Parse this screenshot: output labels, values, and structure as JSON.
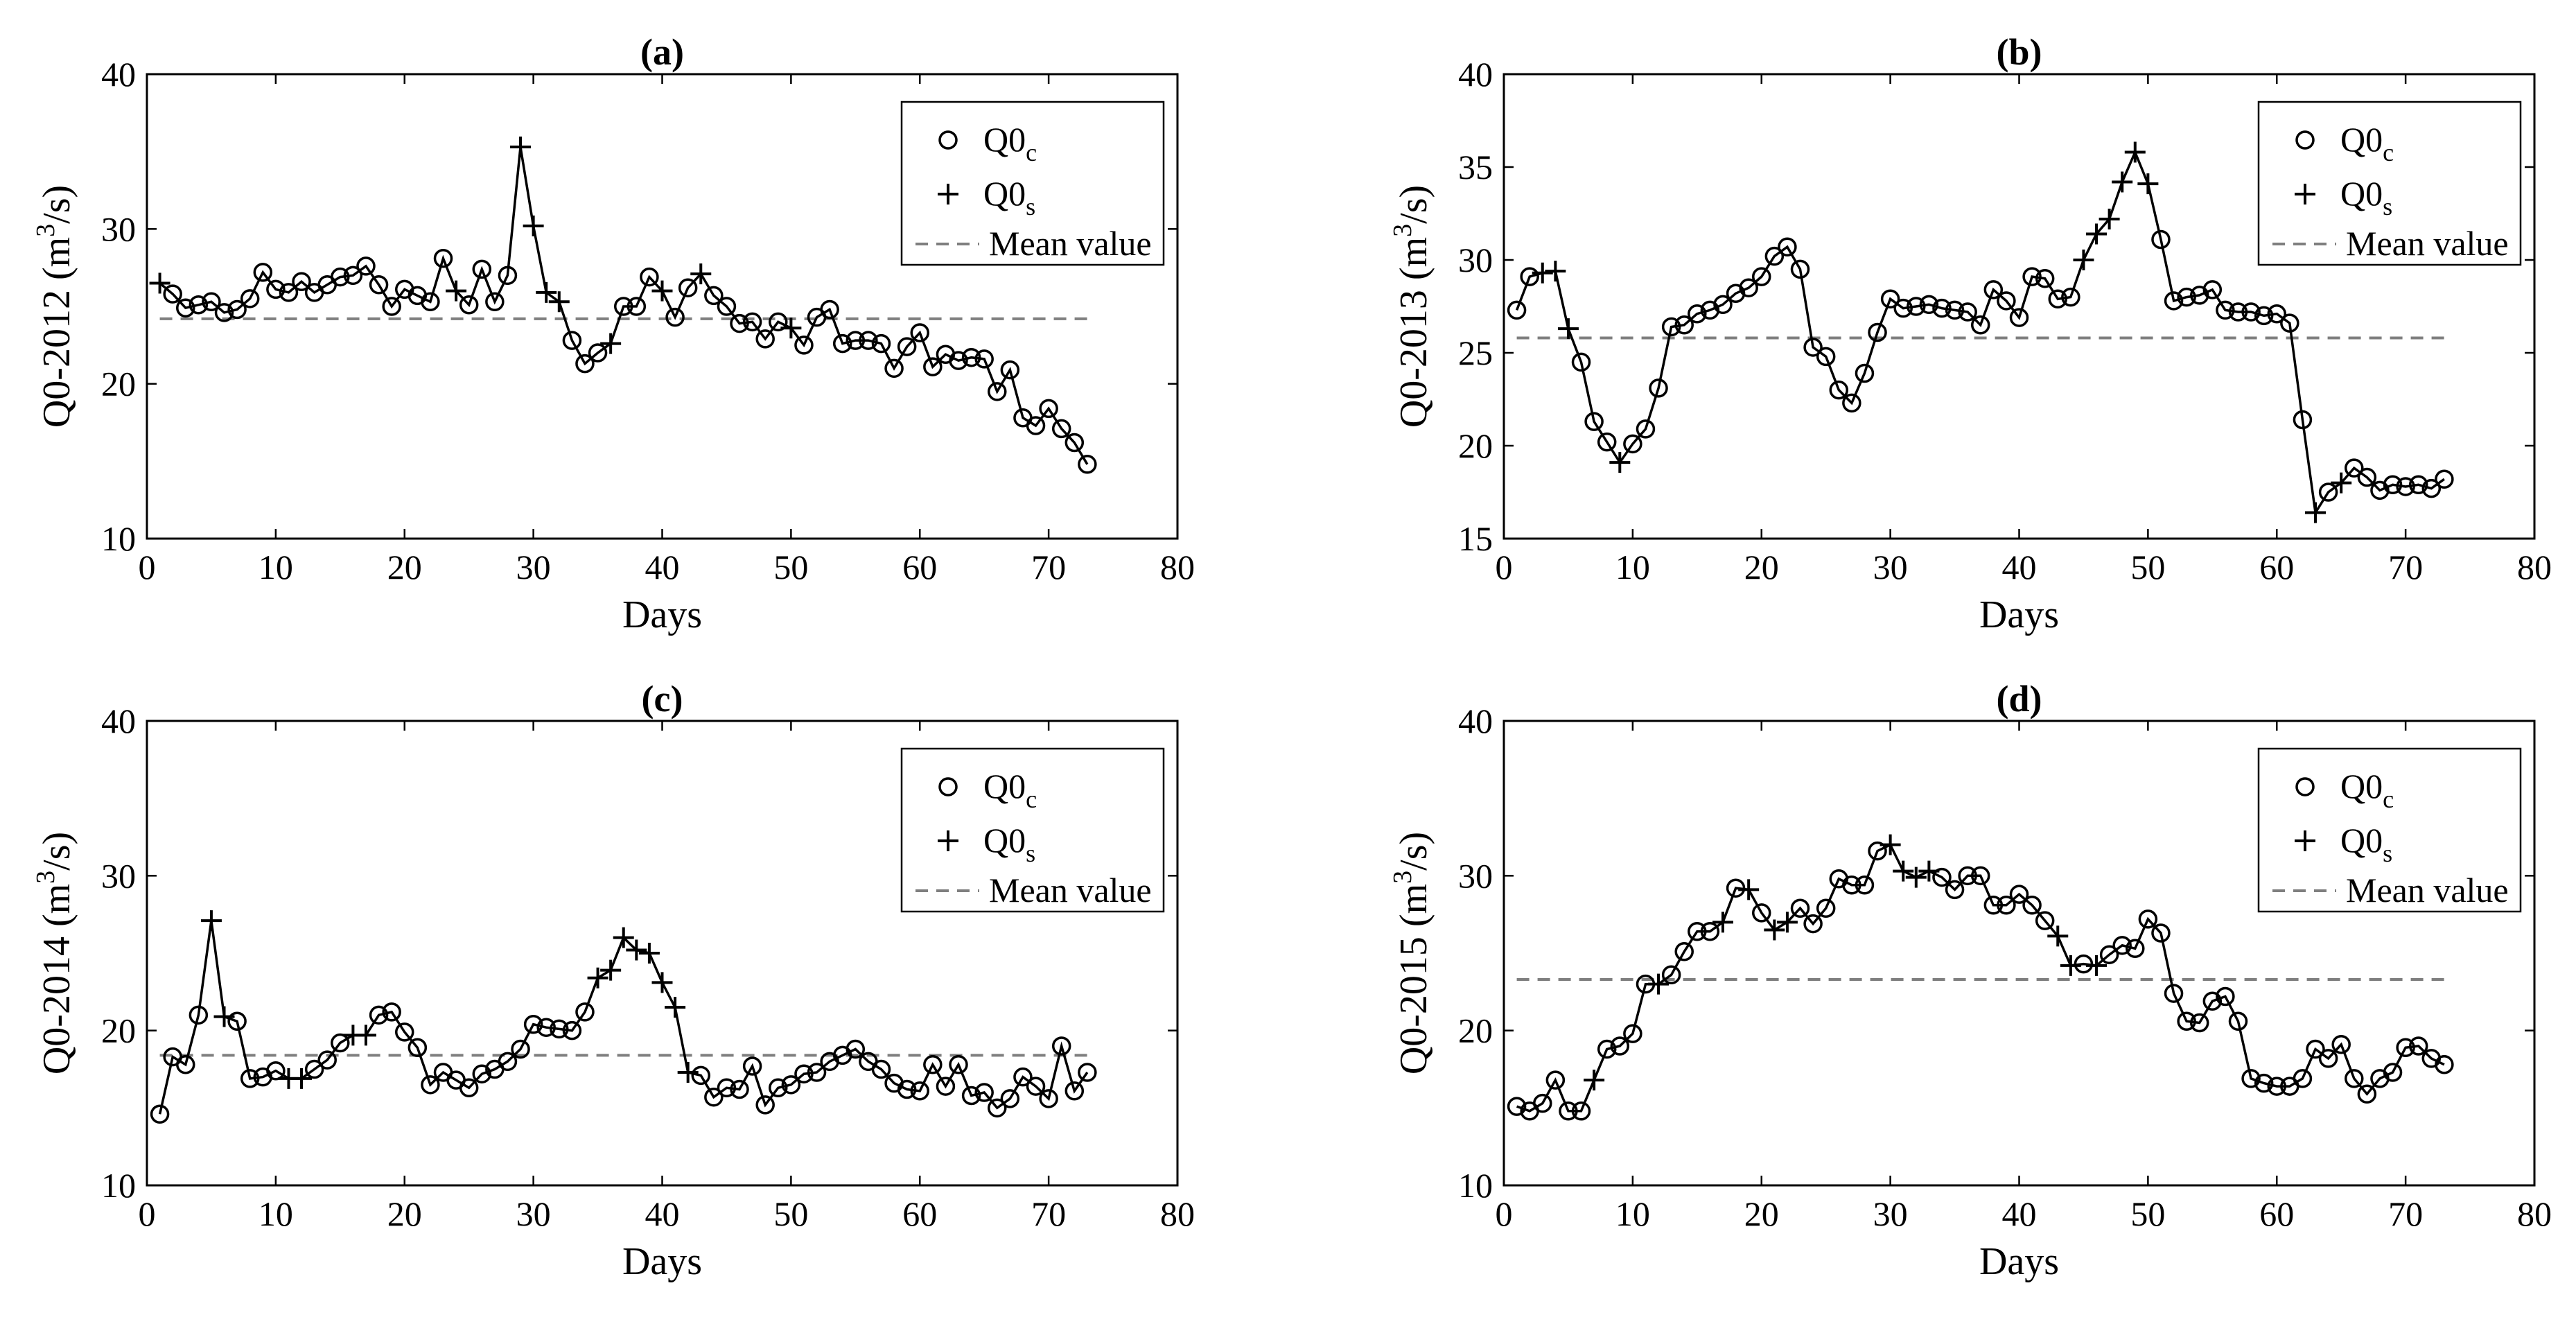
{
  "chart_data": [
    {
      "panel": "a",
      "title": "(a)",
      "type": "line",
      "ylabel": "Q0-2012 (m³/s)",
      "ylabel_base": "Q0-2012 (m",
      "ylabel_sup": "3",
      "ylabel_tail": "/s)",
      "xlabel": "Days",
      "xlim": [
        0,
        80
      ],
      "ylim": [
        10,
        40
      ],
      "xticks": [
        0,
        10,
        20,
        30,
        40,
        50,
        60,
        70,
        80
      ],
      "xtick_labels": [
        "0",
        "10",
        "20",
        "30",
        "40",
        "50",
        "60",
        "70",
        "80"
      ],
      "yticks": [
        10,
        20,
        30,
        40
      ],
      "ytick_labels": [
        "10",
        "20",
        "30",
        "40"
      ],
      "mean": 24.2,
      "legend": {
        "c_base": "Q0",
        "c_sub": "c",
        "s_base": "Q0",
        "s_sub": "s",
        "mean_label": "Mean value"
      },
      "values": [
        26.5,
        25.8,
        24.9,
        25.1,
        25.3,
        24.6,
        24.8,
        25.5,
        27.2,
        26.1,
        25.9,
        26.6,
        25.9,
        26.4,
        26.9,
        27.0,
        27.6,
        26.4,
        25.0,
        26.1,
        25.7,
        25.3,
        28.1,
        26.0,
        25.1,
        27.4,
        25.3,
        27.0,
        35.3,
        30.2,
        25.9,
        25.3,
        22.8,
        21.3,
        22.0,
        22.6,
        25.0,
        25.0,
        26.9,
        26.0,
        24.3,
        26.2,
        27.1,
        25.7,
        25.0,
        23.9,
        24.0,
        22.9,
        24.0,
        23.6,
        22.5,
        24.3,
        24.8,
        22.6,
        22.8,
        22.8,
        22.6,
        21.0,
        22.4,
        23.3,
        21.1,
        21.9,
        21.5,
        21.7,
        21.6,
        19.5,
        20.9,
        17.8,
        17.3,
        18.4,
        17.1,
        16.2,
        14.8
      ],
      "s_days": [
        1,
        24,
        29,
        30,
        31,
        32,
        36,
        40,
        43,
        50
      ]
    },
    {
      "panel": "b",
      "title": "(b)",
      "type": "line",
      "ylabel": "Q0-2013 (m³/s)",
      "ylabel_base": "Q0-2013 (m",
      "ylabel_sup": "3",
      "ylabel_tail": "/s)",
      "xlabel": "Days",
      "xlim": [
        0,
        80
      ],
      "ylim": [
        15,
        40
      ],
      "xticks": [
        0,
        10,
        20,
        30,
        40,
        50,
        60,
        70,
        80
      ],
      "xtick_labels": [
        "0",
        "10",
        "20",
        "30",
        "40",
        "50",
        "60",
        "70",
        "80"
      ],
      "yticks": [
        15,
        20,
        25,
        30,
        35,
        40
      ],
      "ytick_labels": [
        "15",
        "20",
        "25",
        "30",
        "35",
        "40"
      ],
      "mean": 25.8,
      "legend": {
        "c_base": "Q0",
        "c_sub": "c",
        "s_base": "Q0",
        "s_sub": "s",
        "mean_label": "Mean value"
      },
      "values": [
        27.3,
        29.1,
        29.3,
        29.4,
        26.3,
        24.5,
        21.3,
        20.2,
        19.1,
        20.1,
        20.9,
        23.1,
        26.4,
        26.5,
        27.1,
        27.3,
        27.6,
        28.2,
        28.5,
        29.1,
        30.2,
        30.7,
        29.5,
        25.3,
        24.8,
        23.0,
        22.3,
        23.9,
        26.1,
        27.9,
        27.4,
        27.5,
        27.6,
        27.4,
        27.3,
        27.2,
        26.5,
        28.4,
        27.8,
        26.9,
        29.1,
        29.0,
        27.9,
        28.0,
        30.0,
        31.4,
        32.2,
        34.2,
        35.8,
        34.1,
        31.1,
        27.8,
        28.0,
        28.1,
        28.4,
        27.3,
        27.2,
        27.2,
        27.0,
        27.1,
        26.6,
        21.4,
        16.4,
        17.5,
        18.0,
        18.8,
        18.3,
        17.6,
        17.9,
        17.8,
        17.9,
        17.7,
        18.2
      ],
      "s_days": [
        3,
        4,
        5,
        9,
        45,
        46,
        47,
        48,
        49,
        50,
        63,
        65
      ]
    },
    {
      "panel": "c",
      "title": "(c)",
      "type": "line",
      "ylabel": "Q0-2014 (m³/s)",
      "ylabel_base": "Q0-2014 (m",
      "ylabel_sup": "3",
      "ylabel_tail": "/s)",
      "xlabel": "Days",
      "xlim": [
        0,
        80
      ],
      "ylim": [
        10,
        40
      ],
      "xticks": [
        0,
        10,
        20,
        30,
        40,
        50,
        60,
        70,
        80
      ],
      "xtick_labels": [
        "0",
        "10",
        "20",
        "30",
        "40",
        "50",
        "60",
        "70",
        "80"
      ],
      "yticks": [
        10,
        20,
        30,
        40
      ],
      "ytick_labels": [
        "10",
        "20",
        "30",
        "40"
      ],
      "mean": 18.4,
      "legend": {
        "c_base": "Q0",
        "c_sub": "c",
        "s_base": "Q0",
        "s_sub": "s",
        "mean_label": "Mean value"
      },
      "values": [
        14.6,
        18.3,
        17.8,
        21.0,
        27.1,
        20.9,
        20.6,
        16.9,
        17.0,
        17.4,
        16.9,
        16.9,
        17.5,
        18.1,
        19.2,
        19.7,
        19.7,
        21.0,
        21.2,
        19.9,
        18.9,
        16.5,
        17.3,
        16.8,
        16.3,
        17.2,
        17.5,
        18.0,
        18.8,
        20.4,
        20.2,
        20.1,
        20.0,
        21.2,
        23.4,
        23.9,
        26.0,
        25.2,
        25.0,
        23.1,
        21.5,
        17.3,
        17.1,
        15.7,
        16.3,
        16.2,
        17.7,
        15.2,
        16.3,
        16.5,
        17.2,
        17.3,
        18.0,
        18.4,
        18.8,
        18.0,
        17.5,
        16.6,
        16.2,
        16.1,
        17.8,
        16.4,
        17.8,
        15.8,
        16.0,
        15.0,
        15.6,
        17.0,
        16.4,
        15.6,
        19.0,
        16.1,
        17.3
      ],
      "s_days": [
        5,
        6,
        11,
        12,
        16,
        17,
        35,
        36,
        37,
        38,
        39,
        40,
        41,
        42
      ]
    },
    {
      "panel": "d",
      "title": "(d)",
      "type": "line",
      "ylabel": "Q0-2015 (m³/s)",
      "ylabel_base": "Q0-2015 (m",
      "ylabel_sup": "3",
      "ylabel_tail": "/s)",
      "xlabel": "Days",
      "xlim": [
        0,
        80
      ],
      "ylim": [
        10,
        40
      ],
      "xticks": [
        0,
        10,
        20,
        30,
        40,
        50,
        60,
        70,
        80
      ],
      "xtick_labels": [
        "0",
        "10",
        "20",
        "30",
        "40",
        "50",
        "60",
        "70",
        "80"
      ],
      "yticks": [
        10,
        20,
        30,
        40
      ],
      "ytick_labels": [
        "10",
        "20",
        "30",
        "40"
      ],
      "mean": 23.3,
      "legend": {
        "c_base": "Q0",
        "c_sub": "c",
        "s_base": "Q0",
        "s_sub": "s",
        "mean_label": "Mean value"
      },
      "values": [
        15.1,
        14.8,
        15.3,
        16.8,
        14.8,
        14.8,
        16.8,
        18.8,
        19.0,
        19.8,
        23.0,
        23.0,
        23.6,
        25.1,
        26.4,
        26.4,
        27.0,
        29.2,
        29.1,
        27.6,
        26.5,
        27.0,
        27.9,
        26.9,
        27.9,
        29.8,
        29.4,
        29.4,
        31.6,
        32.0,
        30.3,
        29.9,
        30.3,
        29.9,
        29.1,
        30.0,
        30.0,
        28.1,
        28.1,
        28.8,
        28.1,
        27.1,
        26.1,
        24.2,
        24.3,
        24.2,
        24.9,
        25.5,
        25.3,
        27.2,
        26.3,
        22.4,
        20.6,
        20.5,
        21.9,
        22.2,
        20.6,
        16.9,
        16.6,
        16.4,
        16.4,
        16.9,
        18.8,
        18.2,
        19.1,
        16.9,
        15.9,
        16.9,
        17.3,
        18.9,
        19.0,
        18.2,
        17.8
      ],
      "s_days": [
        7,
        12,
        17,
        19,
        21,
        22,
        30,
        31,
        32,
        33,
        43,
        44,
        46
      ]
    }
  ]
}
